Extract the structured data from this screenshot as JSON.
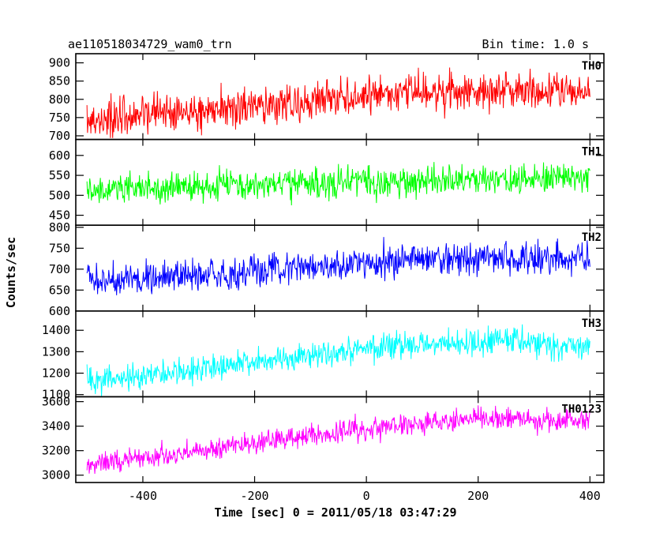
{
  "chart_data": {
    "type": "line",
    "title": "ae110518034729_wam0_trn",
    "bin_time_label": "Bin time: 1.0 s",
    "xlabel": "Time [sec] 0 = 2011/05/18 03:47:29",
    "ylabel": "Counts/sec",
    "xlim": [
      -520,
      425
    ],
    "x_ticks": [
      -400,
      -200,
      0,
      200,
      400
    ],
    "x_range_data": [
      -500,
      400
    ],
    "panels": [
      {
        "name": "TH0",
        "color": "#ff0000",
        "ylim": [
          690,
          925
        ],
        "y_ticks": [
          700,
          750,
          800,
          850,
          900
        ],
        "trend": [
          [
            -500,
            745
          ],
          [
            -300,
            770
          ],
          [
            -100,
            795
          ],
          [
            100,
            825
          ],
          [
            400,
            820
          ]
        ],
        "noise_amplitude": 45
      },
      {
        "name": "TH1",
        "color": "#00ff00",
        "ylim": [
          425,
          640
        ],
        "y_ticks": [
          450,
          500,
          550,
          600
        ],
        "trend": [
          [
            -500,
            515
          ],
          [
            -300,
            522
          ],
          [
            -100,
            530
          ],
          [
            100,
            538
          ],
          [
            400,
            540
          ]
        ],
        "noise_amplitude": 35
      },
      {
        "name": "TH2",
        "color": "#0000ff",
        "ylim": [
          600,
          805
        ],
        "y_ticks": [
          600,
          650,
          700,
          750,
          800
        ],
        "trend": [
          [
            -500,
            672
          ],
          [
            -300,
            685
          ],
          [
            -100,
            705
          ],
          [
            100,
            725
          ],
          [
            400,
            725
          ]
        ],
        "noise_amplitude": 35
      },
      {
        "name": "TH3",
        "color": "#00ffff",
        "ylim": [
          1090,
          1490
        ],
        "y_ticks": [
          1100,
          1200,
          1300,
          1400
        ],
        "trend": [
          [
            -500,
            1160
          ],
          [
            -300,
            1215
          ],
          [
            -100,
            1280
          ],
          [
            100,
            1340
          ],
          [
            250,
            1350
          ],
          [
            400,
            1320
          ]
        ],
        "noise_amplitude": 55
      },
      {
        "name": "TH0123",
        "color": "#ff00ff",
        "ylim": [
          2940,
          3640
        ],
        "y_ticks": [
          3000,
          3200,
          3400,
          3600
        ],
        "trend": [
          [
            -500,
            3080
          ],
          [
            -300,
            3200
          ],
          [
            -100,
            3320
          ],
          [
            100,
            3430
          ],
          [
            250,
            3460
          ],
          [
            400,
            3440
          ]
        ],
        "noise_amplitude": 85
      }
    ]
  }
}
